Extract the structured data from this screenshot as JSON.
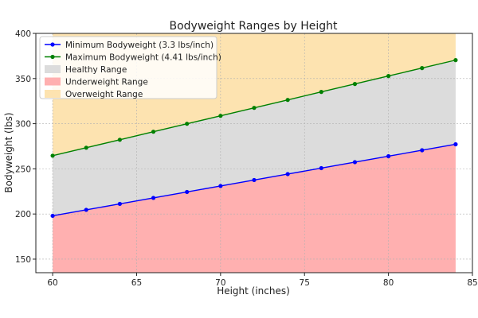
{
  "chart_data": {
    "type": "area",
    "title": "Bodyweight Ranges by Height",
    "xlabel": "Height (inches)",
    "ylabel": "Bodyweight (lbs)",
    "xlim": [
      59,
      85
    ],
    "ylim": [
      135,
      400
    ],
    "xticks": [
      60,
      65,
      70,
      75,
      80,
      85
    ],
    "yticks": [
      150,
      200,
      250,
      300,
      350,
      400
    ],
    "grid": true,
    "legend_position": "top-left",
    "x": [
      60,
      62,
      64,
      66,
      68,
      70,
      72,
      74,
      76,
      78,
      80,
      82,
      84
    ],
    "series": [
      {
        "name": "Minimum Bodyweight (3.3 lbs/inch)",
        "kind": "line",
        "color": "#0000ff",
        "values": [
          198,
          204.6,
          211.2,
          217.8,
          224.4,
          231,
          237.6,
          244.2,
          250.8,
          257.4,
          264,
          270.6,
          277.2
        ]
      },
      {
        "name": "Maximum Bodyweight (4.41 lbs/inch)",
        "kind": "line",
        "color": "#008000",
        "values": [
          264.6,
          273.4,
          282.2,
          291.1,
          299.9,
          308.7,
          317.5,
          326.3,
          335.2,
          344,
          352.8,
          361.6,
          370.4
        ]
      }
    ],
    "bands": [
      {
        "name": "Healthy Range",
        "color": "#dcdcdc",
        "from": "min",
        "to": "max"
      },
      {
        "name": "Underweight Range",
        "color": "#ffb0b0",
        "from": "axis-bottom",
        "to": "min"
      },
      {
        "name": "Overweight Range",
        "color": "#fde3b0",
        "from": "max",
        "to": "axis-top"
      }
    ]
  }
}
